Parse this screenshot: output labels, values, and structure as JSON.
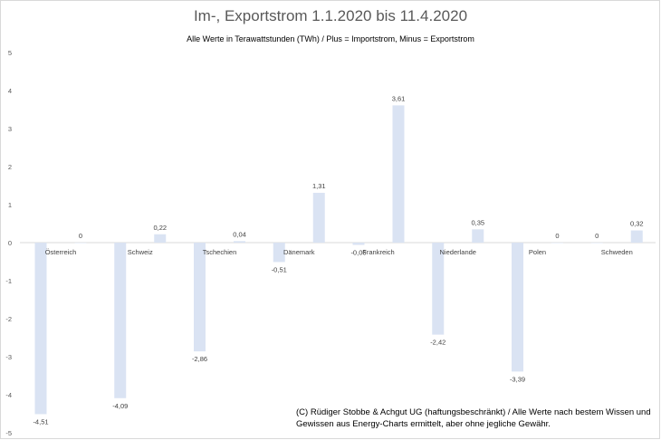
{
  "chart_data": {
    "type": "bar",
    "title": "Im-, Exportstrom 1.1.2020 bis 11.4.2020",
    "subtitle": "Alle Werte in Terawattstunden (TWh) / Plus = Importstrom, Minus = Exportstrom",
    "xlabel": "",
    "ylabel": "",
    "ylim": [
      -5,
      5
    ],
    "yticks": [
      "5",
      "4",
      "3",
      "2",
      "1",
      "0",
      "-1",
      "-2",
      "-3",
      "-4",
      "-5"
    ],
    "grid": false,
    "bar_color": "#dae3f3",
    "categories": [
      "Österreich",
      "Schweiz",
      "Tschechien",
      "Dänemark",
      "Frankreich",
      "Niederlande",
      "Polen",
      "Schweden"
    ],
    "series": [
      {
        "values": [
          -4.51,
          -4.09,
          -2.86,
          -0.51,
          -0.06,
          -2.42,
          -3.39,
          0
        ],
        "labels": [
          "-4,51",
          "-4,09",
          "-2,86",
          "-0,51",
          "-0,06",
          "-2,42",
          "-3,39",
          "0"
        ]
      },
      {
        "values": [
          0,
          0.22,
          0.04,
          1.31,
          3.61,
          0.35,
          0,
          0.32
        ],
        "labels": [
          "0",
          "0,22",
          "0,04",
          "1,31",
          "3,61",
          "0,35",
          "0",
          "0,32"
        ]
      }
    ],
    "footnote": "(C) Rüdiger Stobbe & Achgut UG (haftungsbeschränkt) / Alle Werte nach bestem Wissen und Gewissen aus Energy-Charts ermittelt, aber ohne jegliche Gewähr."
  }
}
